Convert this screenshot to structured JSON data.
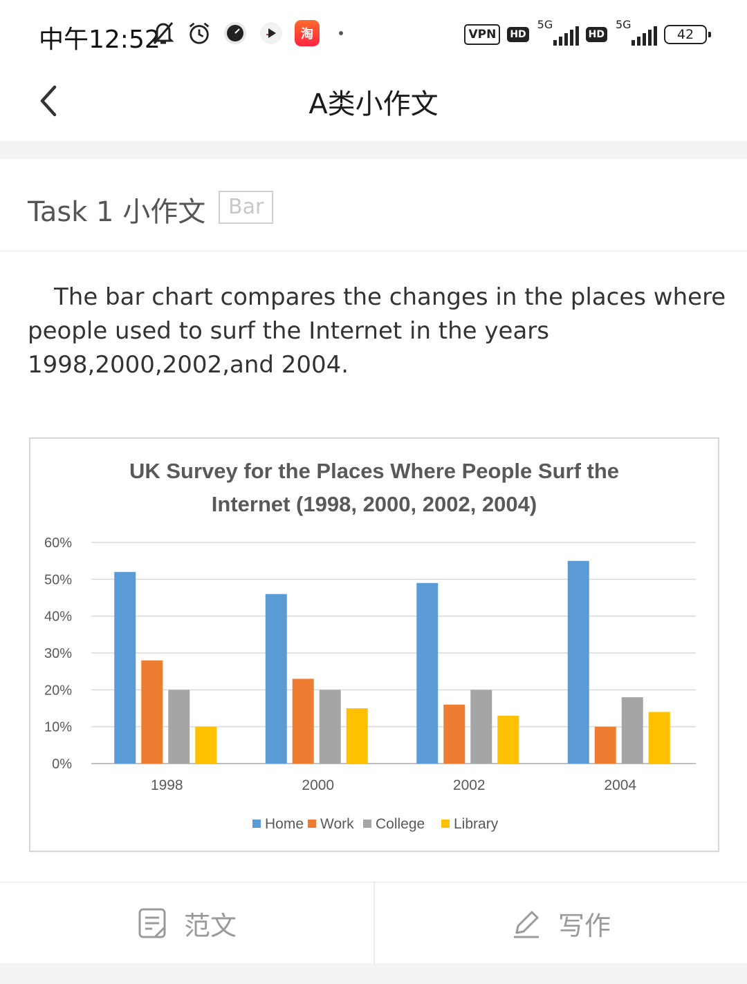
{
  "status_bar": {
    "time": "中午12:52",
    "taobao_label": "淘",
    "vpn": "VPN",
    "hd1": "HD",
    "net1": "5G",
    "hd2": "HD",
    "net2": "5G",
    "battery": "42"
  },
  "nav": {
    "title": "A类小作文"
  },
  "task": {
    "title": "Task 1 小作文",
    "tag": "Bar"
  },
  "description": "The bar chart compares the changes in the places where people used to surf the Internet in the years 1998,2000,2002,and 2004.",
  "chart_data": {
    "type": "bar",
    "title_lines": [
      "UK Survey for the Places Where People Surf the",
      "Internet (1998, 2000, 2002, 2004)"
    ],
    "categories": [
      "1998",
      "2000",
      "2002",
      "2004"
    ],
    "series": [
      {
        "name": "Home",
        "color": "#5b9bd5",
        "values": [
          52,
          46,
          49,
          55
        ]
      },
      {
        "name": "Work",
        "color": "#ed7d31",
        "values": [
          28,
          23,
          16,
          10
        ]
      },
      {
        "name": "College",
        "color": "#a5a5a5",
        "values": [
          20,
          20,
          20,
          18
        ]
      },
      {
        "name": "Library",
        "color": "#ffc000",
        "values": [
          10,
          15,
          13,
          14
        ]
      }
    ],
    "ylim": [
      0,
      60
    ],
    "yticks": [
      "0%",
      "10%",
      "20%",
      "30%",
      "40%",
      "50%",
      "60%"
    ],
    "grid": true,
    "legend": "bottom"
  },
  "bottom_tabs": {
    "sample": "范文",
    "write": "写作"
  }
}
